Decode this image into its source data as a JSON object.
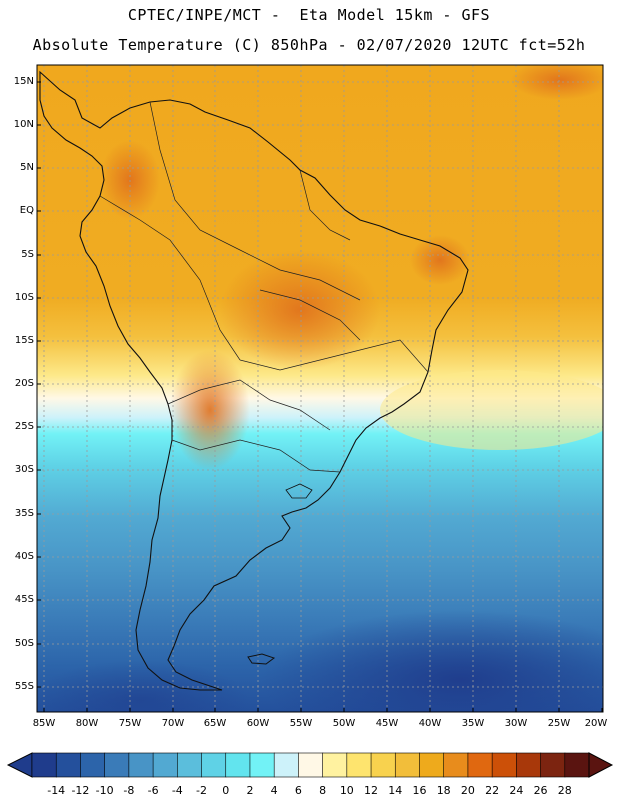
{
  "header": {
    "line1": "CPTEC/INPE/MCT -  Eta Model 15km - GFS",
    "line2": "Absolute Temperature (C) 850hPa - 02/07/2020 12UTC fct=52h"
  },
  "axes": {
    "lat_labels": [
      "15N",
      "10N",
      "5N",
      "EQ",
      "5S",
      "10S",
      "15S",
      "20S",
      "25S",
      "30S",
      "35S",
      "40S",
      "45S",
      "50S",
      "55S"
    ],
    "lon_labels": [
      "85W",
      "80W",
      "75W",
      "70W",
      "65W",
      "60W",
      "55W",
      "50W",
      "45W",
      "40W",
      "35W",
      "30W",
      "25W",
      "20W"
    ]
  },
  "colorbar": {
    "labels": [
      "-14",
      "-12",
      "-10",
      "-8",
      "-6",
      "-4",
      "-2",
      "0",
      "2",
      "4",
      "6",
      "8",
      "10",
      "12",
      "14",
      "16",
      "18",
      "20",
      "22",
      "24",
      "26",
      "28"
    ],
    "colors": [
      "#1f3c8c",
      "#24509c",
      "#2c64aa",
      "#3a7bb8",
      "#4894c6",
      "#52a9d2",
      "#5bbedc",
      "#5fd2e6",
      "#62e4ee",
      "#72f2f6",
      "#cdf2fa",
      "#fff8e6",
      "#fff2a0",
      "#fee46e",
      "#f8d24e",
      "#f2be3a",
      "#eeaa1c",
      "#e88c1c",
      "#e06810",
      "#cc5008",
      "#a8380a",
      "#7c2410",
      "#5a1410"
    ]
  },
  "map": {
    "ocean_color": "#f0a81e",
    "land_color": "#eea218",
    "land_warm_color": "#e67a24"
  }
}
